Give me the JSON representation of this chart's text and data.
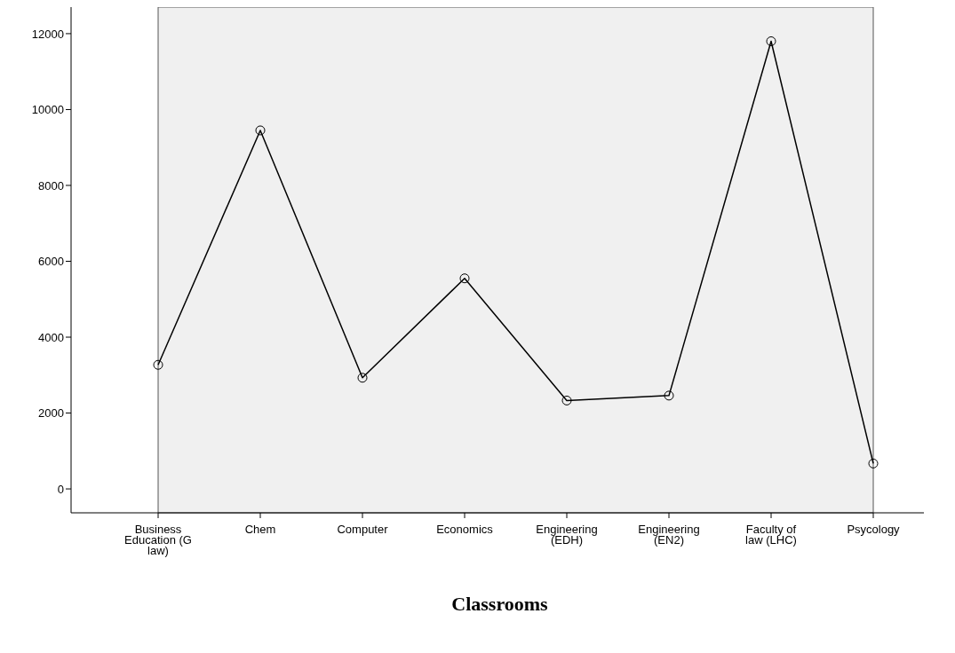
{
  "chart_data": {
    "type": "line",
    "xlabel": "Classrooms",
    "categories": [
      "Business Education (G law)",
      "Chem",
      "Computer",
      "Economics",
      "Engineering (EDH)",
      "Engineering (EN2)",
      "Faculty of law (LHC)",
      "Psycology"
    ],
    "series": [
      {
        "color": "#000000",
        "values": [
          3270,
          9450,
          2930,
          5550,
          2330,
          2460,
          11800,
          670
        ]
      }
    ],
    "ylim": [
      -630,
      12700
    ],
    "yticks": [
      0,
      2000,
      4000,
      6000,
      8000,
      10000,
      12000
    ],
    "grid": false,
    "legend": false,
    "marker": "circle",
    "line_style": "solid"
  }
}
